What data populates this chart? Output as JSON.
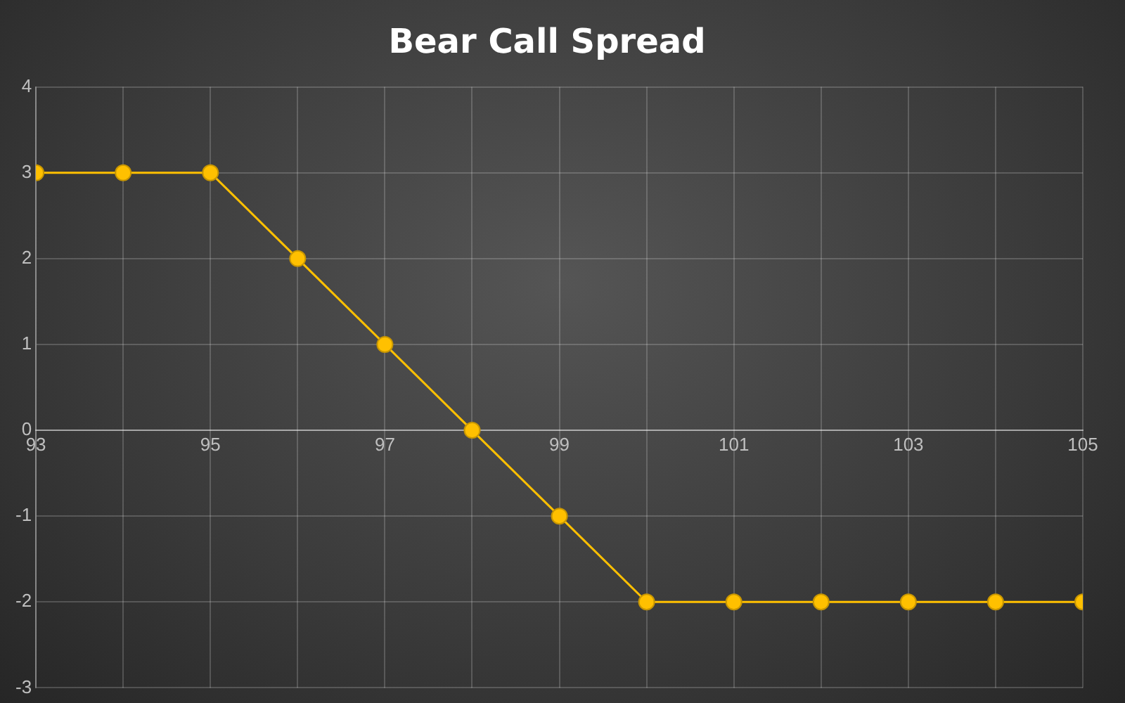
{
  "chart_data": {
    "type": "line",
    "title": "Bear Call Spread",
    "x": [
      93,
      94,
      95,
      96,
      97,
      98,
      99,
      100,
      101,
      102,
      103,
      104,
      105
    ],
    "series": [
      {
        "color": "#ffc000",
        "values": [
          3,
          3,
          3,
          2,
          1,
          0,
          -1,
          -2,
          -2,
          -2,
          -2,
          -2,
          -2
        ]
      }
    ],
    "xlim": [
      93,
      105
    ],
    "xticks": [
      93,
      {
        "value": 94,
        "label": null
      },
      95,
      {
        "value": 96,
        "label": null
      },
      97,
      {
        "value": 98,
        "label": null
      },
      99,
      {
        "value": 100,
        "label": null
      },
      101,
      {
        "value": 102,
        "label": null
      },
      103,
      {
        "value": 104,
        "label": null
      },
      105
    ],
    "ylim": [
      -3,
      4
    ],
    "yticks": [
      -3,
      -2,
      -1,
      0,
      1,
      2,
      3,
      4
    ],
    "grid": true,
    "marker": "circle",
    "line_style": "solid",
    "legend": false
  }
}
